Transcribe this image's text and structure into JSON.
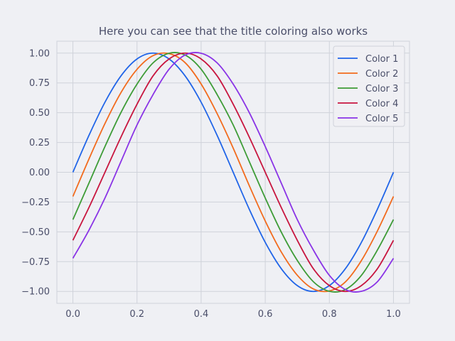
{
  "chart_data": {
    "type": "line",
    "title": "Here you can see that the title coloring also works",
    "xlabel": "",
    "ylabel": "",
    "xlim": [
      -0.05,
      1.05
    ],
    "ylim": [
      -1.1,
      1.1
    ],
    "xticks": [
      0.0,
      0.2,
      0.4,
      0.6,
      0.8,
      1.0
    ],
    "xtick_labels": [
      "0.0",
      "0.2",
      "0.4",
      "0.6",
      "0.8",
      "1.0"
    ],
    "yticks": [
      1.0,
      0.75,
      0.5,
      0.25,
      0.0,
      -0.25,
      -0.5,
      -0.75,
      -1.0
    ],
    "ytick_labels": [
      "1.00",
      "0.75",
      "0.50",
      "0.25",
      "0.00",
      "−0.25",
      "−0.50",
      "−0.75",
      "−1.00"
    ],
    "grid": true,
    "legend_position": "top-right",
    "x": [
      0.0,
      0.05,
      0.1,
      0.15,
      0.2,
      0.25,
      0.3,
      0.35,
      0.4,
      0.45,
      0.5,
      0.55,
      0.6,
      0.65,
      0.7,
      0.75,
      0.8,
      0.85,
      0.9,
      0.95,
      1.0
    ],
    "series": [
      {
        "name": "Color 1",
        "color": "#2065e8",
        "values": [
          0.0,
          0.309,
          0.588,
          0.809,
          0.951,
          1.0,
          0.951,
          0.809,
          0.588,
          0.309,
          0.0,
          -0.309,
          -0.588,
          -0.809,
          -0.951,
          -1.0,
          -0.951,
          -0.809,
          -0.588,
          -0.309,
          0.0
        ]
      },
      {
        "name": "Color 2",
        "color": "#f26b1d",
        "values": [
          -0.203,
          0.111,
          0.409,
          0.669,
          0.864,
          0.979,
          0.996,
          0.92,
          0.741,
          0.492,
          0.203,
          -0.111,
          -0.409,
          -0.669,
          -0.864,
          -0.979,
          -0.996,
          -0.92,
          -0.741,
          -0.492,
          -0.203
        ]
      },
      {
        "name": "Color 3",
        "color": "#3e9c37",
        "values": [
          -0.397,
          -0.091,
          0.216,
          0.502,
          0.74,
          0.918,
          0.999,
          0.984,
          0.865,
          0.652,
          0.397,
          0.091,
          -0.216,
          -0.502,
          -0.74,
          -0.918,
          -0.999,
          -0.984,
          -0.865,
          -0.652,
          -0.397
        ]
      },
      {
        "name": "Color 4",
        "color": "#c8163f",
        "values": [
          -0.571,
          -0.296,
          0.0,
          0.296,
          0.571,
          0.809,
          0.951,
          1.0,
          0.951,
          0.809,
          0.571,
          0.296,
          0.0,
          -0.296,
          -0.571,
          -0.809,
          -0.951,
          -1.0,
          -0.951,
          -0.809,
          -0.571
        ]
      },
      {
        "name": "Color 5",
        "color": "#8a34e6",
        "values": [
          -0.722,
          -0.486,
          -0.216,
          0.091,
          0.397,
          0.652,
          0.865,
          0.984,
          0.999,
          0.918,
          0.74,
          0.502,
          0.216,
          -0.091,
          -0.397,
          -0.652,
          -0.865,
          -0.984,
          -0.999,
          -0.918,
          -0.722
        ]
      }
    ]
  },
  "style": {
    "background": "#eff0f4",
    "plot_background": "#eff0f4",
    "grid_color": "#cfd2da",
    "axis_color": "#cfd2da",
    "text_color": "#4a4e69"
  }
}
